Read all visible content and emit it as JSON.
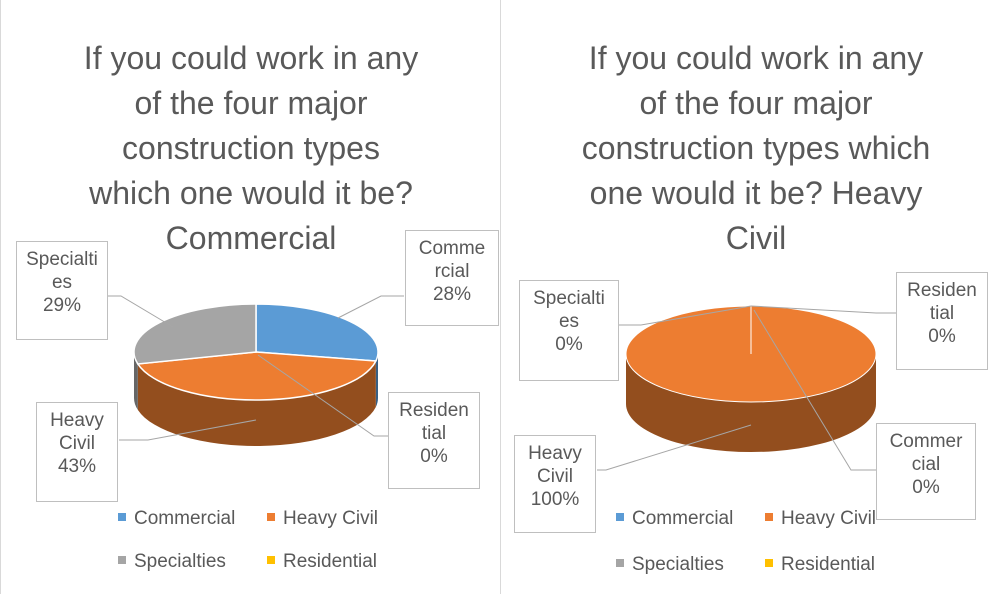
{
  "colors": {
    "Commercial": "#5b9bd5",
    "Heavy Civil": "#ed7d31",
    "Specialties": "#a5a5a5",
    "Residential": "#ffc000"
  },
  "chart_data": [
    {
      "type": "pie",
      "title": "If you could work in any of the four major construction types which one would it be? Commercial",
      "categories": [
        "Commercial",
        "Residential",
        "Heavy Civil",
        "Specialties"
      ],
      "values": [
        28,
        0,
        43,
        29
      ],
      "labels": [
        "Comme rcial 28%",
        "Residen tial 0%",
        "Heavy Civil 43%",
        "Specialti es 29%"
      ],
      "legend": [
        "Commercial",
        "Heavy Civil",
        "Specialties",
        "Residential"
      ],
      "legend_position": "bottom"
    },
    {
      "type": "pie",
      "title": "If you could work in any of the four major construction types which one would it be? Heavy Civil",
      "categories": [
        "Commercial",
        "Residential",
        "Heavy Civil",
        "Specialties"
      ],
      "values": [
        0,
        0,
        100,
        0
      ],
      "labels": [
        "Commer cial 0%",
        "Residen tial 0%",
        "Heavy Civil 100%",
        "Specialti es 0%"
      ],
      "legend": [
        "Commercial",
        "Heavy Civil",
        "Specialties",
        "Residential"
      ],
      "legend_position": "bottom"
    }
  ],
  "display": {
    "left": {
      "title_lines": [
        "If you could work in any",
        "of the four major",
        "construction types",
        "which one would it be?",
        "Commercial"
      ],
      "label_commercial": [
        "Comme",
        "rcial",
        "28%"
      ],
      "label_specialties": [
        "Specialti",
        "es",
        "29%"
      ],
      "label_residential": [
        "Residen",
        "tial",
        "0%"
      ],
      "label_heavy": [
        "Heavy",
        "Civil",
        "43%"
      ]
    },
    "right": {
      "title_lines": [
        "If you could work in any",
        "of the four major",
        "construction types which",
        "one would it be? Heavy",
        "Civil"
      ],
      "label_specialties": [
        "Specialti",
        "es",
        "0%"
      ],
      "label_residential": [
        "Residen",
        "tial",
        "0%"
      ],
      "label_heavy": [
        "Heavy",
        "Civil",
        "100%"
      ],
      "label_commercial": [
        "Commer",
        "cial",
        "0%"
      ]
    }
  }
}
